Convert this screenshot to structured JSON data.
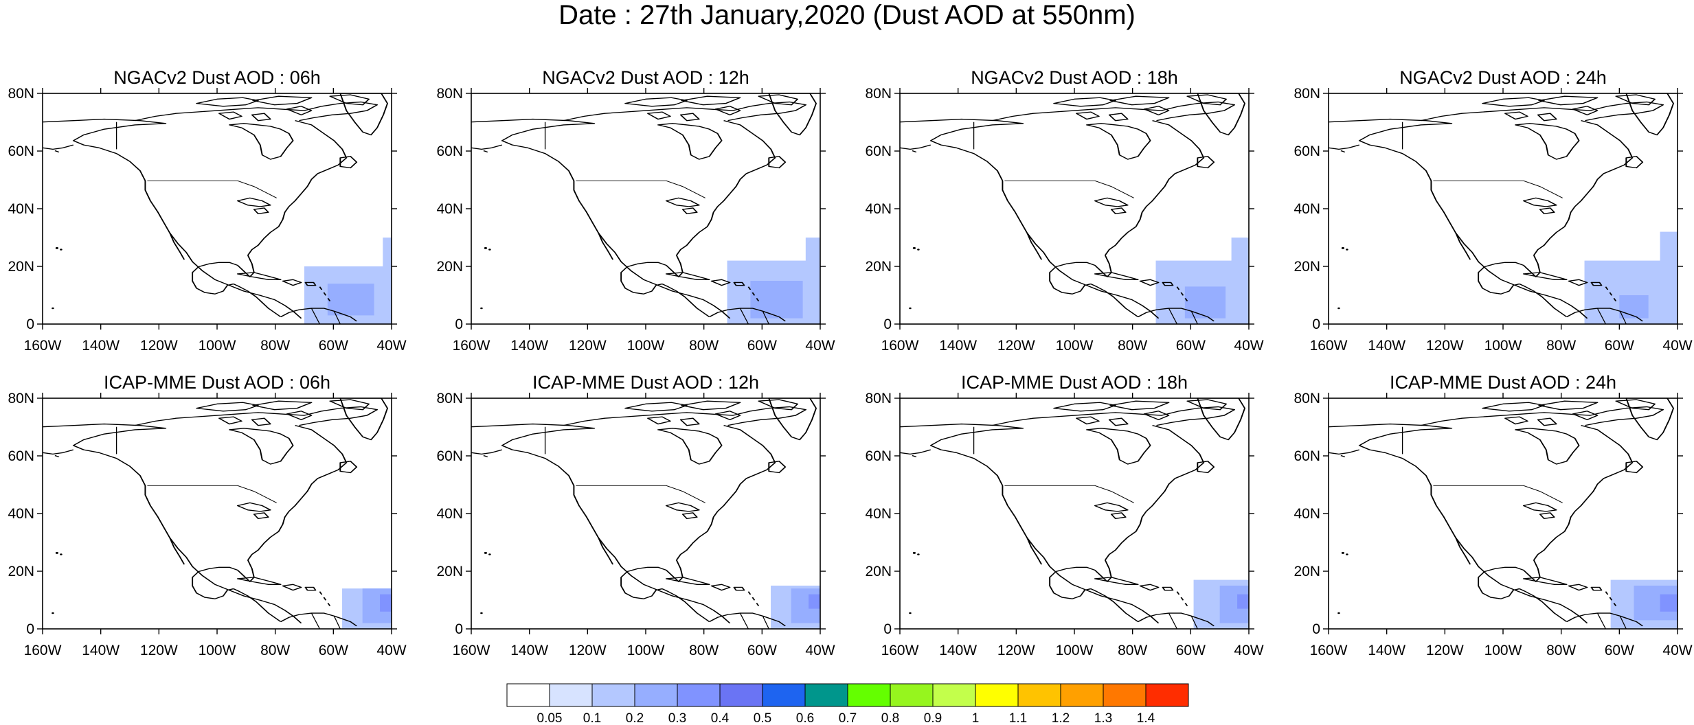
{
  "title": "Date : 27th January,2020 (Dust AOD at 550nm)",
  "lon_ticks": [
    "160W",
    "140W",
    "120W",
    "100W",
    "80W",
    "60W",
    "40W"
  ],
  "lat_ticks": [
    "80N",
    "60N",
    "40N",
    "20N",
    "0"
  ],
  "lon_range": [
    -160,
    -40
  ],
  "lat_range": [
    0,
    80
  ],
  "panels": [
    {
      "title": "NGACv2 Dust AOD : 06h",
      "model": "NGACv2",
      "hour": "06h",
      "dust": [
        {
          "aod": 0.1,
          "lon": [
            -70,
            -40
          ],
          "lat": [
            0,
            20
          ]
        },
        {
          "aod": 0.1,
          "lon": [
            -43,
            -40
          ],
          "lat": [
            20,
            30
          ]
        },
        {
          "aod": 0.2,
          "lon": [
            -62,
            -46
          ],
          "lat": [
            3,
            14
          ]
        }
      ]
    },
    {
      "title": "NGACv2 Dust AOD : 12h",
      "model": "NGACv2",
      "hour": "12h",
      "dust": [
        {
          "aod": 0.1,
          "lon": [
            -72,
            -40
          ],
          "lat": [
            0,
            22
          ]
        },
        {
          "aod": 0.1,
          "lon": [
            -45,
            -40
          ],
          "lat": [
            20,
            30
          ]
        },
        {
          "aod": 0.2,
          "lon": [
            -64,
            -46
          ],
          "lat": [
            2,
            15
          ]
        }
      ]
    },
    {
      "title": "NGACv2 Dust AOD : 18h",
      "model": "NGACv2",
      "hour": "18h",
      "dust": [
        {
          "aod": 0.1,
          "lon": [
            -72,
            -40
          ],
          "lat": [
            0,
            22
          ]
        },
        {
          "aod": 0.1,
          "lon": [
            -46,
            -40
          ],
          "lat": [
            20,
            30
          ]
        },
        {
          "aod": 0.2,
          "lon": [
            -62,
            -48
          ],
          "lat": [
            2,
            13
          ]
        }
      ]
    },
    {
      "title": "NGACv2 Dust AOD : 24h",
      "model": "NGACv2",
      "hour": "24h",
      "dust": [
        {
          "aod": 0.1,
          "lon": [
            -72,
            -40
          ],
          "lat": [
            0,
            22
          ]
        },
        {
          "aod": 0.1,
          "lon": [
            -46,
            -40
          ],
          "lat": [
            20,
            32
          ]
        },
        {
          "aod": 0.2,
          "lon": [
            -60,
            -50
          ],
          "lat": [
            2,
            10
          ]
        }
      ]
    },
    {
      "title": "ICAP-MME Dust AOD : 06h",
      "model": "ICAP-MME",
      "hour": "06h",
      "dust": [
        {
          "aod": 0.1,
          "lon": [
            -57,
            -40
          ],
          "lat": [
            0,
            14
          ]
        },
        {
          "aod": 0.2,
          "lon": [
            -50,
            -40
          ],
          "lat": [
            2,
            14
          ]
        },
        {
          "aod": 0.3,
          "lon": [
            -44,
            -40
          ],
          "lat": [
            6,
            12
          ]
        }
      ]
    },
    {
      "title": "ICAP-MME Dust AOD : 12h",
      "model": "ICAP-MME",
      "hour": "12h",
      "dust": [
        {
          "aod": 0.1,
          "lon": [
            -57,
            -40
          ],
          "lat": [
            0,
            15
          ]
        },
        {
          "aod": 0.2,
          "lon": [
            -50,
            -40
          ],
          "lat": [
            2,
            14
          ]
        },
        {
          "aod": 0.3,
          "lon": [
            -44,
            -40
          ],
          "lat": [
            7,
            12
          ]
        }
      ]
    },
    {
      "title": "ICAP-MME Dust AOD : 18h",
      "model": "ICAP-MME",
      "hour": "18h",
      "dust": [
        {
          "aod": 0.1,
          "lon": [
            -59,
            -40
          ],
          "lat": [
            0,
            17
          ]
        },
        {
          "aod": 0.2,
          "lon": [
            -50,
            -40
          ],
          "lat": [
            2,
            15
          ]
        },
        {
          "aod": 0.3,
          "lon": [
            -44,
            -40
          ],
          "lat": [
            7,
            12
          ]
        }
      ]
    },
    {
      "title": "ICAP-MME Dust AOD : 24h",
      "model": "ICAP-MME",
      "hour": "24h",
      "dust": [
        {
          "aod": 0.1,
          "lon": [
            -63,
            -40
          ],
          "lat": [
            0,
            17
          ]
        },
        {
          "aod": 0.2,
          "lon": [
            -55,
            -40
          ],
          "lat": [
            3,
            15
          ]
        },
        {
          "aod": 0.3,
          "lon": [
            -46,
            -40
          ],
          "lat": [
            6,
            12
          ]
        }
      ]
    }
  ],
  "colorbar": {
    "labels": [
      "0.05",
      "0.1",
      "0.2",
      "0.3",
      "0.4",
      "0.5",
      "0.6",
      "0.7",
      "0.8",
      "0.9",
      "1",
      "1.1",
      "1.2",
      "1.3",
      "1.4"
    ],
    "colors": [
      "#ffffff",
      "#d7e3ff",
      "#b4c8ff",
      "#96aeff",
      "#8093ff",
      "#6a74f4",
      "#1e64f0",
      "#00968c",
      "#64ff00",
      "#96f51e",
      "#c3ff4b",
      "#ffff00",
      "#ffc300",
      "#ffa000",
      "#ff7800",
      "#ff2d00"
    ]
  }
}
